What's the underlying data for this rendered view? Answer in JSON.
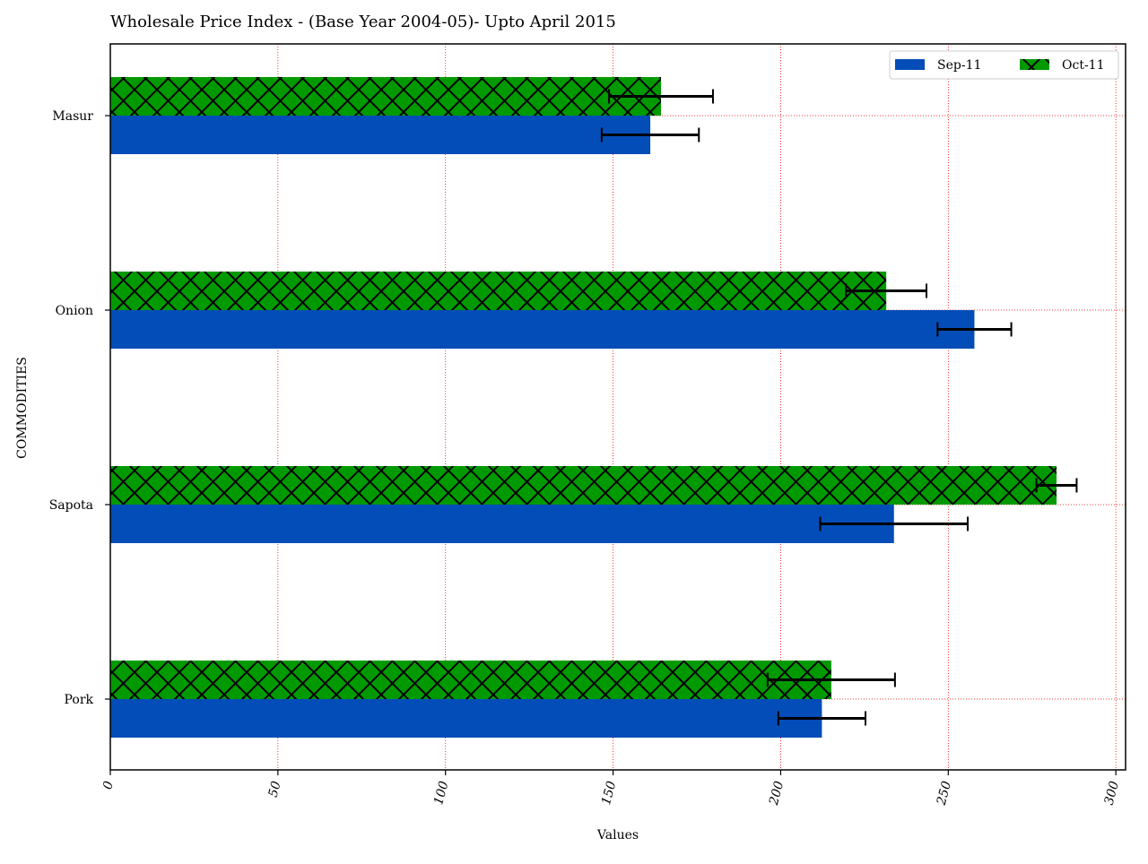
{
  "chart_data": {
    "type": "bar",
    "orientation": "horizontal",
    "title": "Wholesale Price Index - (Base Year 2004-05)- Upto April 2015",
    "xlabel": "Values",
    "ylabel": "COMMODITIES",
    "categories": [
      "Pork",
      "Sapota",
      "Onion",
      "Masur"
    ],
    "series": [
      {
        "name": "Sep-11",
        "color": "#034db8",
        "hatch": "none",
        "values": [
          212.3,
          233.8,
          257.8,
          161.1
        ],
        "error": [
          13.0,
          22.0,
          11.0,
          14.5
        ]
      },
      {
        "name": "Oct-11",
        "color": "#009a00",
        "hatch": "cross",
        "values": [
          215.1,
          282.3,
          231.5,
          164.3
        ],
        "error": [
          19.0,
          6.0,
          12.0,
          15.5
        ]
      }
    ],
    "xlim": [
      0,
      302.9
    ],
    "xticks": [
      0,
      50,
      100,
      150,
      200,
      250,
      300
    ],
    "tick_rotation": 75,
    "grid": true,
    "grid_color": "#ff0000",
    "grid_style": "dotted",
    "legend_position": "top-right"
  }
}
